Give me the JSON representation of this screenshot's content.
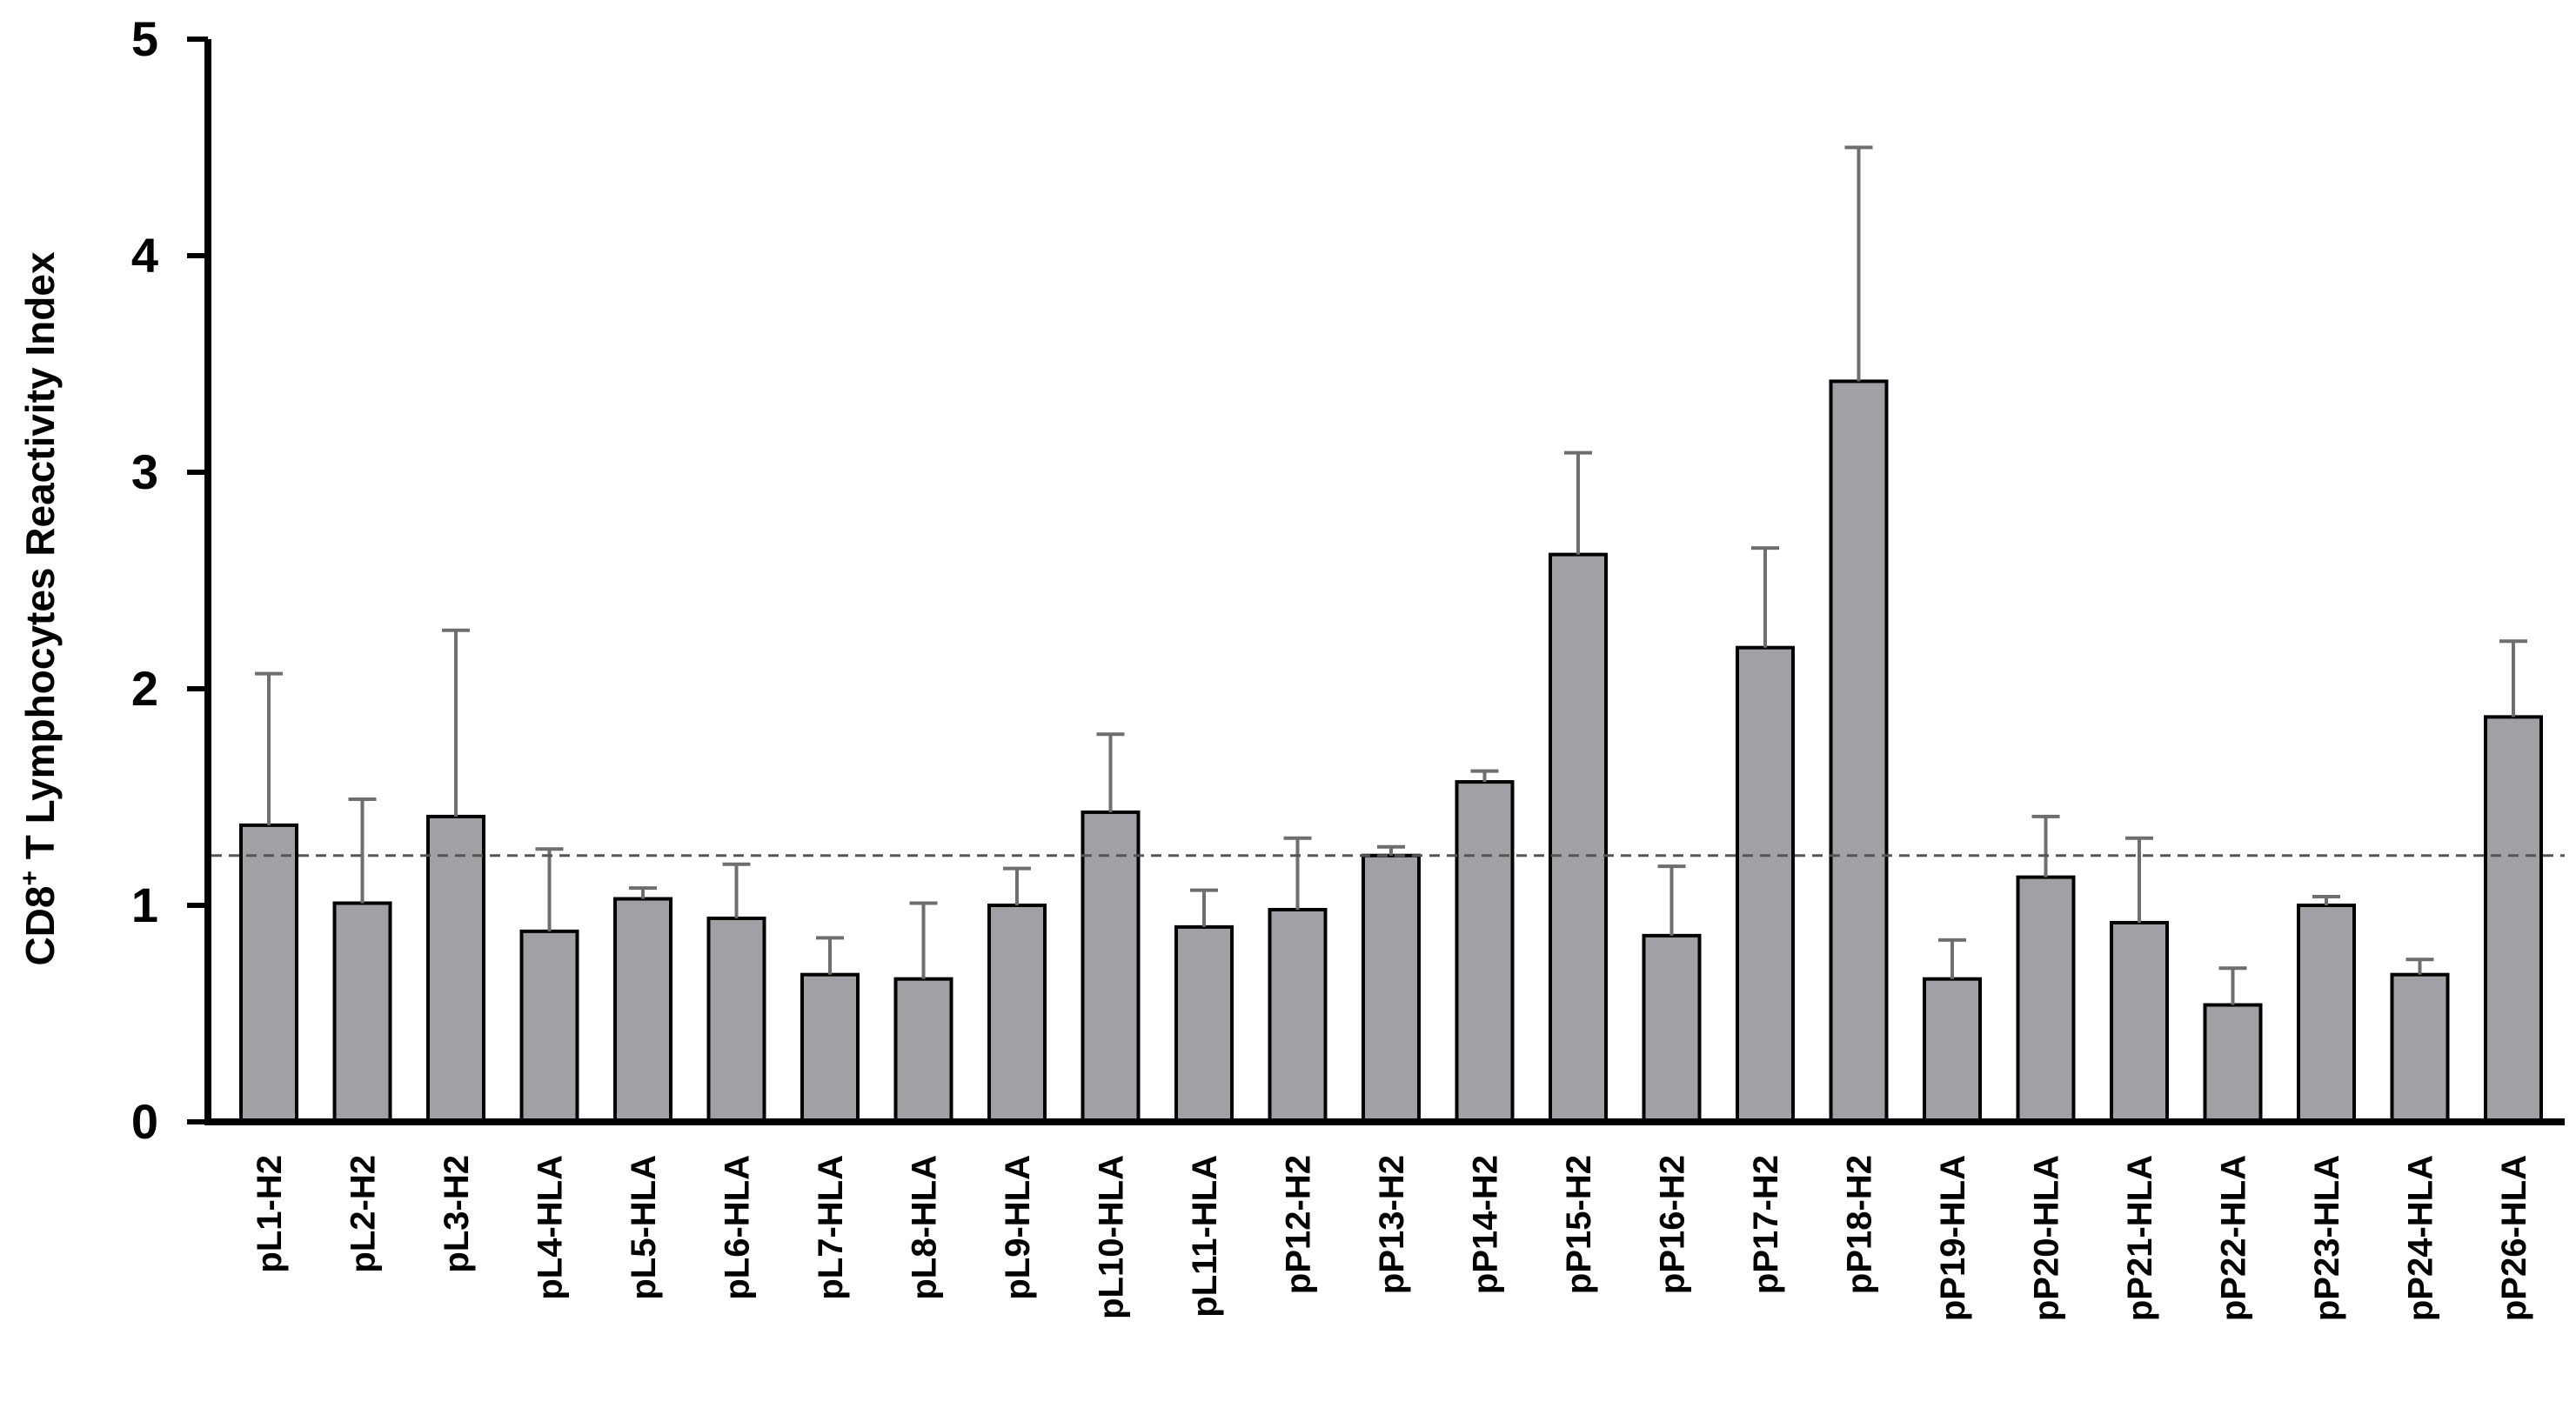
{
  "chart_data": {
    "type": "bar",
    "ylabel_main": "CD8",
    "ylabel_sup": "+",
    "ylabel_rest": " T Lymphocytes Reactivity Index",
    "xlabel": "",
    "ylim": [
      0,
      5
    ],
    "yticks": [
      "0",
      "1",
      "2",
      "3",
      "4",
      "5"
    ],
    "threshold": 1.23,
    "categories": [
      "pL1-H2",
      "pL2-H2",
      "pL3-H2",
      "pL4-HLA",
      "pL5-HLA",
      "pL6-HLA",
      "pL7-HLA",
      "pL8-HLA",
      "pL9-HLA",
      "pL10-HLA",
      "pL11-HLA",
      "pP12-H2",
      "pP13-H2",
      "pP14-H2",
      "pP15-H2",
      "pP16-H2",
      "pP17-H2",
      "pP18-H2",
      "pP19-HLA",
      "pP20-HLA",
      "pP21-HLA",
      "pP22-HLA",
      "pP23-HLA",
      "pP24-HLA",
      "pP26-HLA"
    ],
    "values": [
      1.37,
      1.01,
      1.41,
      0.88,
      1.03,
      0.94,
      0.68,
      0.66,
      1.0,
      1.43,
      0.9,
      0.98,
      1.23,
      1.57,
      2.62,
      0.86,
      2.19,
      3.42,
      0.66,
      1.13,
      0.92,
      0.54,
      1.0,
      0.68,
      1.87
    ],
    "errors": [
      0.7,
      0.48,
      0.86,
      0.38,
      0.05,
      0.25,
      0.17,
      0.35,
      0.17,
      0.36,
      0.17,
      0.33,
      0.04,
      0.05,
      0.47,
      0.32,
      0.46,
      1.08,
      0.18,
      0.28,
      0.39,
      0.17,
      0.04,
      0.07,
      0.35
    ],
    "grid": false,
    "colors": {
      "bar": "#a1a0a5",
      "bar_stroke": "#000000",
      "error": "#6e6e6e",
      "axis": "#000000",
      "threshold": "#555555"
    }
  }
}
